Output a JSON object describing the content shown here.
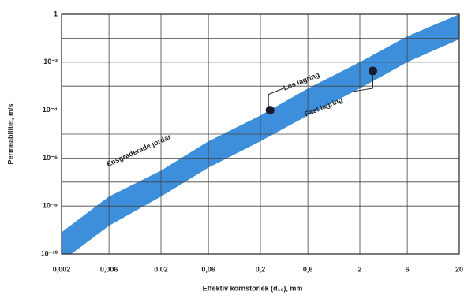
{
  "chart_data": {
    "type": "band",
    "y_label": "Permeabilitet, m/s",
    "x_label": "Effektiv kornstorlek (d₁₀), mm",
    "log_x": true,
    "log_y": true,
    "grid": true,
    "xlim": [
      0.002,
      20
    ],
    "ylim": [
      1e-10,
      1
    ],
    "xticks": [
      {
        "value": 0.002,
        "label": "0,002"
      },
      {
        "value": 0.006,
        "label": "0,006"
      },
      {
        "value": 0.02,
        "label": "0,02"
      },
      {
        "value": 0.06,
        "label": "0,06"
      },
      {
        "value": 0.2,
        "label": "0,2"
      },
      {
        "value": 0.6,
        "label": "0,6"
      },
      2,
      6,
      20
    ],
    "yticks": [
      {
        "value": 1e-10,
        "label": "10⁻¹⁰"
      },
      {
        "value": 1e-08,
        "label": "10⁻⁸"
      },
      {
        "value": 1e-06,
        "label": "10⁻⁶"
      },
      {
        "value": 0.0001,
        "label": "10⁻⁴"
      },
      {
        "value": 0.01,
        "label": "10⁻²"
      },
      1
    ],
    "y_minor_grid": [
      1e-09,
      1e-07,
      1e-05,
      0.001,
      0.1
    ],
    "x": [
      0.002,
      0.006,
      0.02,
      0.06,
      0.2,
      0.6,
      2,
      6,
      20
    ],
    "band_upper": [
      8e-10,
      2.5e-08,
      3e-07,
      5e-06,
      6e-05,
      0.0008,
      0.01,
      0.12,
      1
    ],
    "band_lower": [
      5e-11,
      1.5e-09,
      2.5e-08,
      4e-07,
      5e-06,
      6e-05,
      0.0008,
      0.01,
      0.09
    ],
    "color": "#3d8fdb",
    "band_label": "Ensgraderade jordar",
    "points": [
      {
        "x": 0.25,
        "y": 0.0001,
        "label": "Lös lagring"
      },
      {
        "x": 2.7,
        "y": 0.0043,
        "label": "Fast lagring"
      }
    ],
    "point_color": "#1a1a2a"
  }
}
